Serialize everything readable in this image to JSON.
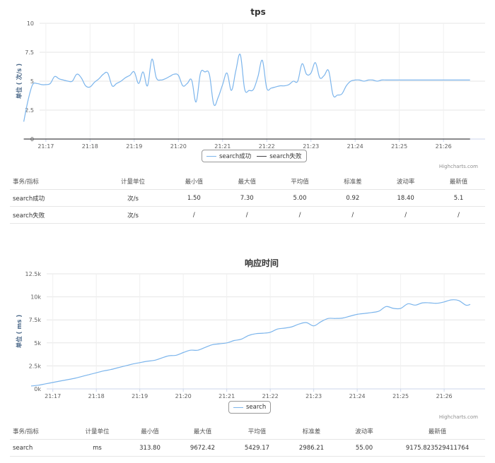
{
  "chart_data": [
    {
      "type": "line",
      "title": "tps",
      "ylabel": "单位 ( 次/s )",
      "ylim": [
        0,
        10
      ],
      "yticks": [
        "0",
        "2.5",
        "5",
        "7.5",
        "10"
      ],
      "ytick_values": [
        0,
        2.5,
        5,
        7.5,
        10
      ],
      "xlim": [
        21.5,
        626.5
      ],
      "xticks": [
        "21:17",
        "21:18",
        "21:19",
        "21:20",
        "21:21",
        "21:22",
        "21:23",
        "21:24",
        "21:25",
        "21:26"
      ],
      "xtick_values": [
        30,
        90,
        150,
        210,
        270,
        330,
        390,
        450,
        510,
        570
      ],
      "grid": true,
      "series": [
        {
          "name": "search成功",
          "color": "#7cb5ec",
          "x": [
            0,
            6,
            12,
            18,
            24,
            30,
            36,
            42,
            48,
            54,
            60,
            66,
            72,
            78,
            84,
            90,
            96,
            102,
            108,
            114,
            120,
            126,
            132,
            138,
            144,
            150,
            156,
            162,
            168,
            174,
            180,
            186,
            192,
            198,
            204,
            210,
            216,
            222,
            228,
            234,
            240,
            246,
            252,
            258,
            264,
            270,
            276,
            282,
            288,
            294,
            300,
            306,
            312,
            318,
            324,
            330,
            336,
            342,
            348,
            354,
            360,
            366,
            372,
            378,
            384,
            390,
            396,
            402,
            408,
            414,
            420,
            426,
            432,
            438,
            444,
            450,
            456,
            462,
            468,
            474,
            480,
            486,
            492,
            498,
            504,
            510,
            516,
            522,
            528,
            534,
            540,
            546,
            552,
            558,
            564,
            570,
            576,
            582,
            588,
            594,
            600,
            606
          ],
          "values": [
            1.5,
            3.4,
            4.7,
            4.8,
            4.7,
            4.7,
            4.8,
            5.4,
            5.2,
            5.1,
            5.0,
            5.0,
            5.6,
            5.3,
            4.6,
            4.5,
            4.9,
            5.2,
            5.6,
            5.7,
            4.6,
            4.8,
            5.0,
            5.3,
            5.5,
            5.8,
            4.8,
            5.8,
            4.6,
            6.9,
            5.3,
            5.1,
            5.2,
            5.4,
            5.6,
            5.5,
            4.6,
            4.8,
            5.1,
            3.2,
            5.7,
            5.8,
            5.6,
            3.0,
            3.6,
            4.7,
            5.7,
            4.2,
            5.9,
            7.3,
            4.3,
            4.2,
            4.3,
            5.4,
            6.8,
            4.4,
            4.4,
            4.5,
            4.6,
            4.6,
            4.7,
            5.0,
            5.0,
            6.5,
            5.6,
            5.7,
            6.6,
            5.3,
            5.5,
            5.9,
            3.8,
            3.8,
            3.9,
            4.6,
            5.0,
            5.1,
            5.1,
            5.0,
            5.1,
            5.1,
            5.0,
            5.1,
            5.1,
            5.1,
            5.1,
            5.1,
            5.1,
            5.1,
            5.1,
            5.1,
            5.1,
            5.1,
            5.1,
            5.1,
            5.1,
            5.1,
            5.1,
            5.1,
            5.1,
            5.1,
            5.1,
            5.1
          ]
        },
        {
          "name": "search失败",
          "color": "#434348",
          "x": [
            0,
            606
          ],
          "values": [
            0,
            0
          ]
        }
      ]
    },
    {
      "type": "line",
      "title": "响应时间",
      "ylabel": "单位 ( ms )",
      "ylim": [
        0,
        12500
      ],
      "yticks": [
        "0k",
        "2.5k",
        "5k",
        "7.5k",
        "10k",
        "12.5k"
      ],
      "ytick_values": [
        0,
        2500,
        5000,
        7500,
        10000,
        12500
      ],
      "xlim": [
        21.5,
        626.5
      ],
      "xticks": [
        "21:17",
        "21:18",
        "21:19",
        "21:20",
        "21:21",
        "21:22",
        "21:23",
        "21:24",
        "21:25",
        "21:26"
      ],
      "xtick_values": [
        30,
        90,
        150,
        210,
        270,
        330,
        390,
        450,
        510,
        570
      ],
      "grid": true,
      "series": [
        {
          "name": "search",
          "color": "#7cb5ec",
          "x": [
            0,
            10,
            20,
            30,
            40,
            50,
            60,
            70,
            80,
            90,
            100,
            110,
            120,
            130,
            140,
            150,
            160,
            170,
            180,
            190,
            200,
            210,
            220,
            230,
            240,
            250,
            260,
            270,
            280,
            290,
            300,
            310,
            320,
            330,
            340,
            350,
            360,
            370,
            380,
            390,
            400,
            410,
            420,
            430,
            440,
            450,
            460,
            470,
            480,
            490,
            500,
            510,
            520,
            530,
            540,
            550,
            560,
            570,
            580,
            590,
            600,
            606
          ],
          "values": [
            313.8,
            400,
            550,
            700,
            850,
            1000,
            1150,
            1350,
            1550,
            1750,
            1950,
            2100,
            2300,
            2500,
            2700,
            2850,
            3000,
            3100,
            3350,
            3600,
            3650,
            3950,
            4200,
            4200,
            4500,
            4800,
            4900,
            5000,
            5250,
            5400,
            5800,
            6000,
            6050,
            6150,
            6500,
            6600,
            6750,
            7050,
            7200,
            6850,
            7300,
            7650,
            7650,
            7700,
            7900,
            8100,
            8200,
            8300,
            8450,
            8950,
            8750,
            8750,
            9250,
            9100,
            9350,
            9350,
            9300,
            9450,
            9672.42,
            9600,
            9100,
            9175.82
          ]
        }
      ]
    }
  ],
  "panel1": {
    "credit": "Highcharts.com",
    "table": {
      "headers": [
        "事务/指标",
        "计量单位",
        "最小值",
        "最大值",
        "平均值",
        "标准差",
        "波动率",
        "最新值"
      ],
      "rows": [
        [
          "search成功",
          "次/s",
          "1.50",
          "7.30",
          "5.00",
          "0.92",
          "18.40",
          "5.1"
        ],
        [
          "search失败",
          "次/s",
          "/",
          "/",
          "/",
          "/",
          "/",
          "/"
        ]
      ]
    }
  },
  "panel2": {
    "credit": "Highcharts.com",
    "table": {
      "headers": [
        "事务/指标",
        "计量单位",
        "最小值",
        "最大值",
        "平均值",
        "标准差",
        "波动率",
        "最新值"
      ],
      "rows": [
        [
          "search",
          "ms",
          "313.80",
          "9672.42",
          "5429.17",
          "2986.21",
          "55.00",
          "9175.823529411764"
        ]
      ]
    }
  }
}
